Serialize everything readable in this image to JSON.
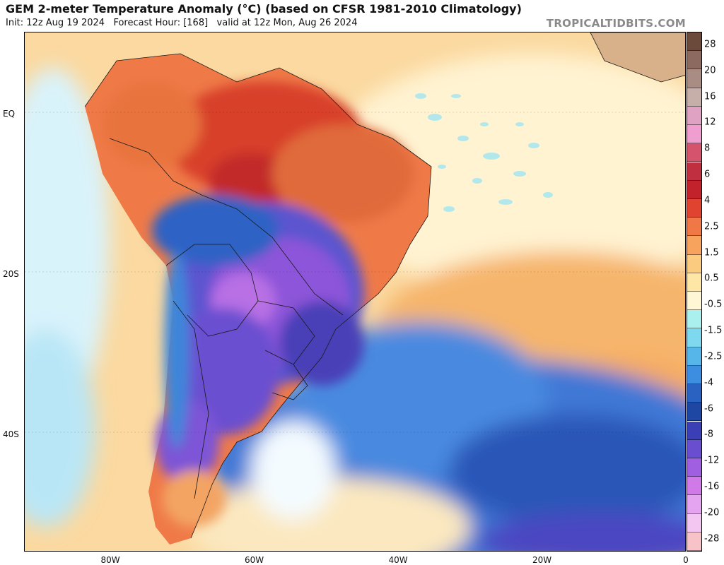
{
  "header": {
    "title": "GEM 2-meter Temperature Anomaly (°C) (based on CFSR 1981-2010 Climatology)",
    "subtitle": "Init: 12z Aug 19 2024   Forecast Hour: [168]   valid at 12z Mon, Aug 26 2024",
    "brand": "TROPICALTIDBITS.COM"
  },
  "axes": {
    "latitudes": [
      {
        "label": "EQ",
        "lat": 0
      },
      {
        "label": "20S",
        "lat": -20
      },
      {
        "label": "40S",
        "lat": -40
      }
    ],
    "longitudes": [
      {
        "label": "80W",
        "lon": -80
      },
      {
        "label": "60W",
        "lon": -60
      },
      {
        "label": "40W",
        "lon": -40
      },
      {
        "label": "20W",
        "lon": -20
      },
      {
        "label": "0",
        "lon": 0
      }
    ]
  },
  "colorbar": {
    "labels": [
      "28",
      "20",
      "16",
      "12",
      "8",
      "6",
      "4",
      "2.5",
      "1.5",
      "0.5",
      "-0.5",
      "-1.5",
      "-2.5",
      "-4",
      "-6",
      "-8",
      "-12",
      "-16",
      "-20",
      "-28"
    ],
    "colors": [
      "#6b4a3c",
      "#8c6a5f",
      "#a98c84",
      "#c6aea9",
      "#e0a2c2",
      "#f09ed0",
      "#d5536d",
      "#bf2f3f",
      "#c2222c",
      "#e0432f",
      "#f07847",
      "#f7a35e",
      "#fbcb7f",
      "#fde6a6",
      "#fff6d6",
      "#a9f0ef",
      "#7fd9ee",
      "#56b6ea",
      "#3d8de0",
      "#2a62c2",
      "#1e46a3",
      "#3a3fb6",
      "#6a4ed0",
      "#a05fe0",
      "#d07ae8",
      "#e5a4ef",
      "#f2c6f1",
      "#f7c2c8"
    ]
  },
  "map": {
    "shading": [
      {
        "region": "Amazon / northern South America",
        "anomaly": "warm",
        "color": "#e0532f"
      },
      {
        "region": "Central South America (Paraguay, southern Brazil, Bolivia, northern Argentina)",
        "anomaly": "cold",
        "color": "#9050d8"
      },
      {
        "region": "South Atlantic",
        "anomaly": "cold",
        "color": "#3a62c8"
      },
      {
        "region": "Tropical Atlantic",
        "anomaly": "slightly warm",
        "color": "#f8c27a"
      },
      {
        "region": "Patagonia",
        "anomaly": "warm",
        "color": "#f2a56a"
      }
    ]
  }
}
